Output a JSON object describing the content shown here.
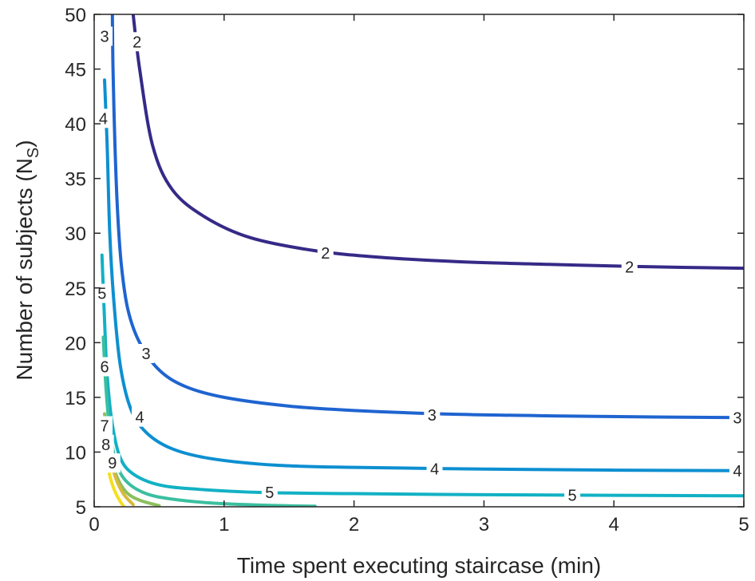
{
  "chart_data": {
    "type": "line",
    "subtype": "contour",
    "xlabel": "Time spent executing staircase (min)",
    "ylabel": "Number of subjects (N",
    "ylabel_sub": "S",
    "ylabel_close": ")",
    "xlim": [
      0,
      5
    ],
    "ylim": [
      5,
      50
    ],
    "xticks": [
      0,
      1,
      2,
      3,
      4,
      5
    ],
    "yticks": [
      5,
      10,
      15,
      20,
      25,
      30,
      35,
      40,
      45,
      50
    ],
    "xtick_labels": [
      "0",
      "1",
      "2",
      "3",
      "4",
      "5"
    ],
    "ytick_labels": [
      "5",
      "10",
      "15",
      "20",
      "25",
      "30",
      "35",
      "40",
      "45",
      "50"
    ],
    "grid": false,
    "box": true,
    "series": [
      {
        "level": 2,
        "color": "#352a87",
        "points": [
          [
            0.3,
            50
          ],
          [
            0.35,
            45
          ],
          [
            0.45,
            38
          ],
          [
            0.6,
            34
          ],
          [
            0.85,
            31.5
          ],
          [
            1.2,
            29.6
          ],
          [
            1.7,
            28.4
          ],
          [
            2.2,
            27.8
          ],
          [
            2.8,
            27.4
          ],
          [
            3.5,
            27.15
          ],
          [
            4.2,
            26.95
          ],
          [
            5,
            26.8
          ]
        ],
        "labels": [
          {
            "text": "2",
            "x": 0.33,
            "y": 47.5
          },
          {
            "text": "2",
            "x": 1.78,
            "y": 28.2
          },
          {
            "text": "2",
            "x": 4.12,
            "y": 26.9
          }
        ]
      },
      {
        "level": 3,
        "color": "#1f64d0",
        "points": [
          [
            0.14,
            50
          ],
          [
            0.145,
            45
          ],
          [
            0.16,
            38
          ],
          [
            0.18,
            32
          ],
          [
            0.21,
            27
          ],
          [
            0.26,
            23
          ],
          [
            0.35,
            20
          ],
          [
            0.5,
            17.5
          ],
          [
            0.7,
            16
          ],
          [
            1.0,
            15
          ],
          [
            1.5,
            14.2
          ],
          [
            2.0,
            13.8
          ],
          [
            2.8,
            13.45
          ],
          [
            3.6,
            13.3
          ],
          [
            4.4,
            13.2
          ],
          [
            5,
            13.15
          ]
        ],
        "labels": [
          {
            "text": "3",
            "x": 0.08,
            "y": 48
          },
          {
            "text": "3",
            "x": 0.4,
            "y": 19
          },
          {
            "text": "3",
            "x": 2.6,
            "y": 13.4
          },
          {
            "text": "3",
            "x": 4.95,
            "y": 13.15
          }
        ]
      },
      {
        "level": 4,
        "color": "#0d8fd1",
        "points": [
          [
            0.08,
            44
          ],
          [
            0.1,
            38
          ],
          [
            0.12,
            30
          ],
          [
            0.15,
            24
          ],
          [
            0.2,
            18
          ],
          [
            0.28,
            14
          ],
          [
            0.4,
            11.8
          ],
          [
            0.6,
            10.3
          ],
          [
            0.9,
            9.4
          ],
          [
            1.4,
            8.8
          ],
          [
            2,
            8.6
          ],
          [
            3,
            8.45
          ],
          [
            4,
            8.35
          ],
          [
            5,
            8.3
          ]
        ],
        "labels": [
          {
            "text": "4",
            "x": 0.07,
            "y": 40.5
          },
          {
            "text": "4",
            "x": 0.35,
            "y": 13.2
          },
          {
            "text": "4",
            "x": 2.62,
            "y": 8.45
          },
          {
            "text": "4",
            "x": 4.95,
            "y": 8.3
          }
        ]
      },
      {
        "level": 5,
        "color": "#12b1c4",
        "points": [
          [
            0.06,
            28
          ],
          [
            0.08,
            22
          ],
          [
            0.1,
            17
          ],
          [
            0.14,
            12.5
          ],
          [
            0.2,
            9.5
          ],
          [
            0.3,
            8
          ],
          [
            0.5,
            7
          ],
          [
            0.8,
            6.6
          ],
          [
            1.3,
            6.3
          ],
          [
            2,
            6.2
          ],
          [
            3,
            6.1
          ],
          [
            4,
            6.05
          ],
          [
            5,
            6.0
          ]
        ],
        "labels": [
          {
            "text": "5",
            "x": 0.06,
            "y": 24.5
          },
          {
            "text": "5",
            "x": 1.35,
            "y": 6.3
          },
          {
            "text": "5",
            "x": 3.68,
            "y": 6.05
          }
        ]
      },
      {
        "level": 6,
        "color": "#3bbfa0",
        "points": [
          [
            0.07,
            20.5
          ],
          [
            0.09,
            16
          ],
          [
            0.12,
            12
          ],
          [
            0.17,
            9
          ],
          [
            0.25,
            7.3
          ],
          [
            0.4,
            6.2
          ],
          [
            0.6,
            5.7
          ],
          [
            0.9,
            5.35
          ],
          [
            1.3,
            5.15
          ],
          [
            1.7,
            5.05
          ]
        ],
        "labels": [
          {
            "text": "6",
            "x": 0.08,
            "y": 17.8
          }
        ]
      },
      {
        "level": 7,
        "color": "#8dbf5f",
        "points": [
          [
            0.08,
            13.5
          ],
          [
            0.1,
            11.5
          ],
          [
            0.13,
            9.5
          ],
          [
            0.18,
            7.6
          ],
          [
            0.25,
            6.3
          ],
          [
            0.35,
            5.6
          ],
          [
            0.5,
            5.1
          ]
        ],
        "labels": [
          {
            "text": "7",
            "x": 0.08,
            "y": 12.4
          }
        ]
      },
      {
        "level": 8,
        "color": "#d9b93a",
        "points": [
          [
            0.09,
            11.6
          ],
          [
            0.11,
            10.2
          ],
          [
            0.14,
            8.6
          ],
          [
            0.18,
            7.2
          ],
          [
            0.23,
            6.1
          ],
          [
            0.3,
            5.2
          ]
        ],
        "labels": [
          {
            "text": "8",
            "x": 0.09,
            "y": 10.7
          }
        ]
      },
      {
        "level": 9,
        "color": "#f3df20",
        "points": [
          [
            0.09,
            9.5
          ],
          [
            0.11,
            8.4
          ],
          [
            0.13,
            7.4
          ],
          [
            0.16,
            6.4
          ],
          [
            0.2,
            5.5
          ],
          [
            0.23,
            5.0
          ]
        ],
        "labels": [
          {
            "text": "9",
            "x": 0.14,
            "y": 9.0
          }
        ]
      }
    ]
  }
}
